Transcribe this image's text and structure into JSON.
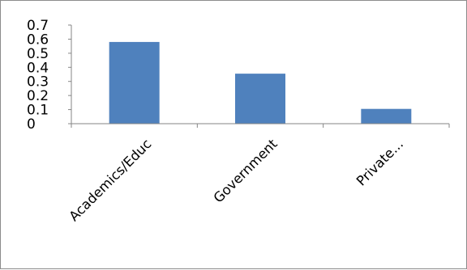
{
  "chart_data": {
    "type": "bar",
    "categories": [
      "Academics/Educ",
      "Government",
      "Private..."
    ],
    "values": [
      0.58,
      0.355,
      0.105
    ],
    "title": "",
    "xlabel": "",
    "ylabel": "",
    "ylim": [
      0,
      0.7
    ],
    "yticks": [
      "0",
      "0.1",
      "0.2",
      "0.3",
      "0.4",
      "0.5",
      "0.6",
      "0.7"
    ],
    "grid": false,
    "legend": "none",
    "bar_color": "#4f81bd",
    "axis_color": "#868686"
  }
}
